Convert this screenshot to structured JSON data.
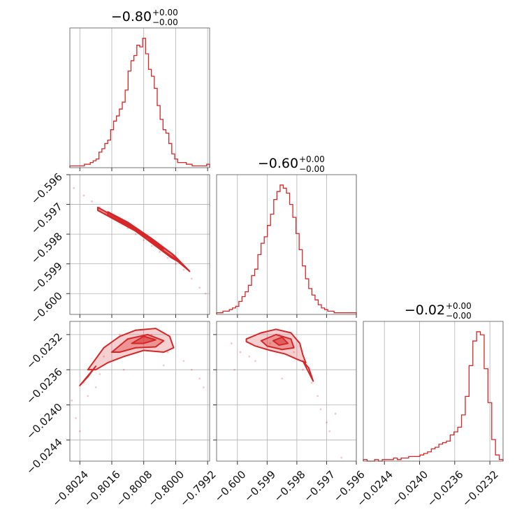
{
  "chart_data": {
    "type": "corner",
    "color": "#d62728",
    "parameters": [
      {
        "title_value": "−0.80",
        "title_plus": "+0.00",
        "title_minus": "−0.00",
        "range": [
          -0.80265,
          -0.79915
        ],
        "ticks": [
          -0.8024,
          -0.8016,
          -0.8008,
          -0.8,
          -0.7992
        ],
        "tick_labels": [
          "−0.8024",
          "−0.8016",
          "−0.8008",
          "−0.8000",
          "−0.7992"
        ],
        "hist_counts": [
          1,
          1,
          1,
          1,
          1,
          2,
          2,
          3,
          4,
          5,
          9,
          11,
          14,
          16,
          22,
          27,
          30,
          34,
          38,
          45,
          56,
          62,
          65,
          71,
          70,
          75,
          66,
          57,
          53,
          46,
          36,
          28,
          22,
          20,
          14,
          8,
          5,
          3,
          3,
          3,
          2,
          2,
          1,
          1,
          1,
          1,
          1,
          2
        ]
      },
      {
        "title_value": "−0.60",
        "title_plus": "+0.00",
        "title_minus": "−0.00",
        "range": [
          -0.6007,
          -0.596
        ],
        "ticks": [
          -0.6,
          -0.599,
          -0.598,
          -0.597,
          -0.596
        ],
        "tick_labels": [
          "−0.600",
          "−0.599",
          "−0.598",
          "−0.597",
          "−0.596"
        ],
        "hist_counts": [
          1,
          1,
          2,
          2,
          3,
          4,
          5,
          8,
          11,
          14,
          18,
          24,
          28,
          37,
          44,
          48,
          55,
          62,
          71,
          76,
          80,
          78,
          75,
          68,
          60,
          50,
          40,
          30,
          22,
          16,
          12,
          9,
          6,
          4,
          3,
          2,
          2,
          1,
          1,
          1,
          1,
          1,
          1,
          1
        ]
      },
      {
        "title_value": "−0.02",
        "title_plus": "+0.00",
        "title_minus": "−0.00",
        "range": [
          -0.02464,
          -0.02305
        ],
        "ticks": [
          -0.0244,
          -0.024,
          -0.0236,
          -0.0232
        ],
        "tick_labels": [
          "−0.0244",
          "−0.0240",
          "−0.0236",
          "−0.0232"
        ],
        "hist_counts": [
          1,
          0,
          0,
          1,
          0,
          1,
          1,
          1,
          2,
          1,
          2,
          2,
          3,
          3,
          3,
          4,
          5,
          6,
          8,
          9,
          11,
          12,
          13,
          17,
          19,
          22,
          30,
          42,
          62,
          78,
          84,
          82,
          60,
          38,
          14,
          4,
          1
        ]
      }
    ],
    "pairs": [
      {
        "x_param": 0,
        "y_param": 1,
        "scatter": [
          [
            -0.80255,
            -0.59645
          ],
          [
            -0.8023,
            -0.5967
          ],
          [
            -0.8021,
            -0.5969
          ],
          [
            -0.8019,
            -0.5971
          ],
          [
            -0.80175,
            -0.5973
          ],
          [
            -0.8016,
            -0.5974
          ],
          [
            -0.8014,
            -0.5976
          ],
          [
            -0.8012,
            -0.5978
          ],
          [
            -0.801,
            -0.598
          ],
          [
            -0.8008,
            -0.5982
          ],
          [
            -0.8006,
            -0.5984
          ],
          [
            -0.8004,
            -0.5986
          ],
          [
            -0.8002,
            -0.5988
          ],
          [
            -0.8,
            -0.599
          ],
          [
            -0.7998,
            -0.5992
          ],
          [
            -0.7996,
            -0.5995
          ],
          [
            -0.7994,
            -0.5998
          ],
          [
            -0.79925,
            -0.6
          ]
        ],
        "contours": [
          [
            [
              -0.8017,
              -0.59725
            ],
            [
              -0.8012,
              -0.5976
            ],
            [
              -0.8006,
              -0.59815
            ],
            [
              -0.8001,
              -0.59865
            ],
            [
              -0.7999,
              -0.59895
            ],
            [
              -0.8001,
              -0.5988
            ],
            [
              -0.8006,
              -0.5983
            ],
            [
              -0.8012,
              -0.5977
            ],
            [
              -0.8017,
              -0.59735
            ]
          ],
          [
            [
              -0.8013,
              -0.5976
            ],
            [
              -0.8008,
              -0.598
            ],
            [
              -0.8004,
              -0.59845
            ],
            [
              -0.8003,
              -0.5985
            ],
            [
              -0.8006,
              -0.5982
            ],
            [
              -0.8011,
              -0.5978
            ],
            [
              -0.8013,
              -0.5976
            ]
          ],
          [
            [
              -0.80195,
              -0.5971
            ],
            [
              -0.801,
              -0.5978
            ],
            [
              -0.80005,
              -0.5987
            ],
            [
              -0.79965,
              -0.59925
            ],
            [
              -0.80005,
              -0.5988
            ],
            [
              -0.801,
              -0.5979
            ],
            [
              -0.80195,
              -0.5972
            ]
          ]
        ]
      },
      {
        "x_param": 0,
        "y_param": 2,
        "scatter": [
          [
            -0.8026,
            -0.02395
          ],
          [
            -0.8025,
            -0.02415
          ],
          [
            -0.8024,
            -0.0243
          ],
          [
            -0.8023,
            -0.02375
          ],
          [
            -0.8022,
            -0.0239
          ],
          [
            -0.8021,
            -0.0236
          ],
          [
            -0.8019,
            -0.02365
          ],
          [
            -0.8018,
            -0.02345
          ],
          [
            -0.8016,
            -0.0234
          ],
          [
            -0.8014,
            -0.0232
          ],
          [
            -0.801,
            -0.02315
          ],
          [
            -0.8006,
            -0.0232
          ],
          [
            -0.8002,
            -0.0234
          ],
          [
            -0.7998,
            -0.0235
          ],
          [
            -0.7996,
            -0.0236
          ],
          [
            -0.7994,
            -0.0237
          ],
          [
            -0.7993,
            -0.0238
          ],
          [
            -0.8003,
            -0.02355
          ],
          [
            -0.8013,
            -0.0236
          ],
          [
            -0.802,
            -0.0238
          ]
        ],
        "contours": [
          [
            [
              -0.8022,
              -0.0236
            ],
            [
              -0.8018,
              -0.02335
            ],
            [
              -0.8014,
              -0.02322
            ],
            [
              -0.801,
              -0.02315
            ],
            [
              -0.8005,
              -0.02313
            ],
            [
              -0.80015,
              -0.02322
            ],
            [
              -0.80005,
              -0.02335
            ],
            [
              -0.8003,
              -0.0234
            ],
            [
              -0.8008,
              -0.02338
            ],
            [
              -0.8013,
              -0.02345
            ],
            [
              -0.8017,
              -0.02352
            ],
            [
              -0.802,
              -0.0236
            ]
          ],
          [
            [
              -0.8016,
              -0.0234
            ],
            [
              -0.8012,
              -0.02325
            ],
            [
              -0.8007,
              -0.0232
            ],
            [
              -0.8003,
              -0.02327
            ],
            [
              -0.8005,
              -0.02334
            ],
            [
              -0.801,
              -0.02335
            ],
            [
              -0.8014,
              -0.0234
            ]
          ],
          [
            [
              -0.8011,
              -0.0233
            ],
            [
              -0.8008,
              -0.02322
            ],
            [
              -0.8005,
              -0.02326
            ],
            [
              -0.8008,
              -0.0233
            ]
          ],
          [
            [
              -0.8024,
              -0.02378
            ],
            [
              -0.8022,
              -0.02368
            ],
            [
              -0.802,
              -0.02356
            ]
          ]
        ]
      },
      {
        "x_param": 1,
        "y_param": 2,
        "scatter": [
          [
            -0.6002,
            -0.0233
          ],
          [
            -0.6001,
            -0.0236
          ],
          [
            -0.5999,
            -0.0234
          ],
          [
            -0.5996,
            -0.02345
          ],
          [
            -0.5994,
            -0.0235
          ],
          [
            -0.5989,
            -0.0233
          ],
          [
            -0.5986,
            -0.0232
          ],
          [
            -0.5981,
            -0.0234
          ],
          [
            -0.5978,
            -0.0236
          ],
          [
            -0.5975,
            -0.02375
          ],
          [
            -0.5973,
            -0.0239
          ],
          [
            -0.5972,
            -0.02405
          ],
          [
            -0.597,
            -0.0242
          ],
          [
            -0.5969,
            -0.0243
          ],
          [
            -0.5967,
            -0.0241
          ],
          [
            -0.5985,
            -0.0237
          ],
          [
            -0.5965,
            -0.0246
          ]
        ],
        "contours": [
          [
            [
              -0.5997,
              -0.02325
            ],
            [
              -0.5992,
              -0.02318
            ],
            [
              -0.5987,
              -0.02314
            ],
            [
              -0.5982,
              -0.02318
            ],
            [
              -0.5979,
              -0.0233
            ],
            [
              -0.5978,
              -0.02343
            ],
            [
              -0.5977,
              -0.02352
            ],
            [
              -0.598,
              -0.02348
            ],
            [
              -0.5984,
              -0.02342
            ],
            [
              -0.5989,
              -0.02338
            ],
            [
              -0.5994,
              -0.02333
            ],
            [
              -0.5997,
              -0.02328
            ]
          ],
          [
            [
              -0.5992,
              -0.02327
            ],
            [
              -0.5987,
              -0.0232
            ],
            [
              -0.5982,
              -0.02325
            ],
            [
              -0.5981,
              -0.02335
            ],
            [
              -0.5985,
              -0.02337
            ],
            [
              -0.599,
              -0.02333
            ]
          ],
          [
            [
              -0.5988,
              -0.02327
            ],
            [
              -0.5985,
              -0.02323
            ],
            [
              -0.5983,
              -0.0233
            ],
            [
              -0.5986,
              -0.02332
            ]
          ],
          [
            [
              -0.5978,
              -0.0235
            ],
            [
              -0.5976,
              -0.02358
            ],
            [
              -0.59745,
              -0.02373
            ]
          ]
        ]
      }
    ]
  }
}
